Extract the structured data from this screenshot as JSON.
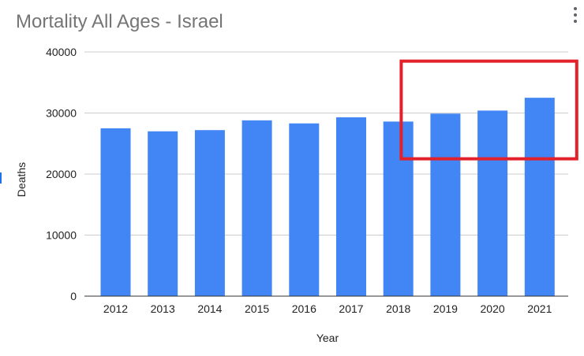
{
  "chart_data": {
    "type": "bar",
    "title": "Mortality All Ages - Israel",
    "xlabel": "Year",
    "ylabel": "Deaths",
    "categories": [
      "2012",
      "2013",
      "2014",
      "2015",
      "2016",
      "2017",
      "2018",
      "2019",
      "2020",
      "2021"
    ],
    "values": [
      27500,
      27000,
      27200,
      28800,
      28300,
      29300,
      28600,
      29900,
      30400,
      32500
    ],
    "ylim": [
      0,
      40000
    ],
    "yticks": [
      "0",
      "10000",
      "20000",
      "30000",
      "40000"
    ],
    "grid": true,
    "legend": "none",
    "bar_color": "#4285f4",
    "highlight": {
      "categories": [
        "2019",
        "2020",
        "2021"
      ],
      "y_from": 22500,
      "y_to": 38500,
      "color": "#e3212b"
    }
  },
  "menu": {
    "icon": "more-vert-icon"
  }
}
